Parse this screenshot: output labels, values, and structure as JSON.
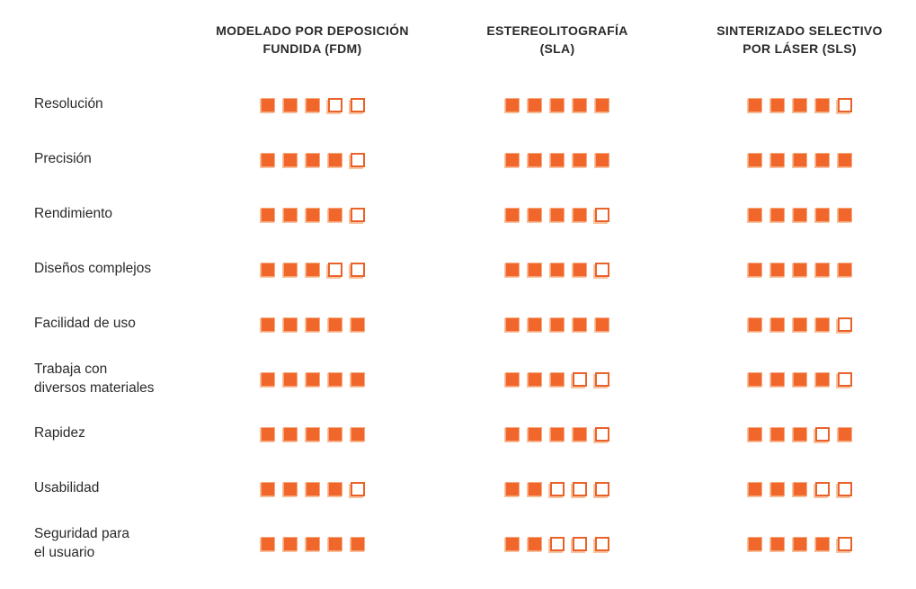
{
  "colors": {
    "square_filled": "#F1662B",
    "square_filled_edge": "#F6A97D",
    "square_empty_border": "#E9622A",
    "square_shadow": "#F9C3A0",
    "text": "#2b2a29",
    "background": "#ffffff"
  },
  "columns": [
    {
      "id": "fdm",
      "label": "MODELADO POR DEPOSICIÓN\nFUNDIDA (FDM)"
    },
    {
      "id": "sla",
      "label": "ESTEREOLITOGRAFÍA\n(SLA)"
    },
    {
      "id": "sls",
      "label": "SINTERIZADO SELECTIVO\nPOR LÁSER (SLS)"
    }
  ],
  "max_squares": 5,
  "rows": [
    {
      "label": "Resolución",
      "ratings": {
        "fdm": [
          1,
          1,
          1,
          0,
          0
        ],
        "sla": [
          1,
          1,
          1,
          1,
          1
        ],
        "sls": [
          1,
          1,
          1,
          1,
          0
        ]
      }
    },
    {
      "label": "Precisión",
      "ratings": {
        "fdm": [
          1,
          1,
          1,
          1,
          0
        ],
        "sla": [
          1,
          1,
          1,
          1,
          1
        ],
        "sls": [
          1,
          1,
          1,
          1,
          1
        ]
      }
    },
    {
      "label": "Rendimiento",
      "ratings": {
        "fdm": [
          1,
          1,
          1,
          1,
          0
        ],
        "sla": [
          1,
          1,
          1,
          1,
          0
        ],
        "sls": [
          1,
          1,
          1,
          1,
          1
        ]
      }
    },
    {
      "label": "Diseños complejos",
      "ratings": {
        "fdm": [
          1,
          1,
          1,
          0,
          0
        ],
        "sla": [
          1,
          1,
          1,
          1,
          0
        ],
        "sls": [
          1,
          1,
          1,
          1,
          1
        ]
      }
    },
    {
      "label": "Facilidad de uso",
      "ratings": {
        "fdm": [
          1,
          1,
          1,
          1,
          1
        ],
        "sla": [
          1,
          1,
          1,
          1,
          1
        ],
        "sls": [
          1,
          1,
          1,
          1,
          0
        ]
      }
    },
    {
      "label": "Trabaja con\ndiversos materiales",
      "ratings": {
        "fdm": [
          1,
          1,
          1,
          1,
          1
        ],
        "sla": [
          1,
          1,
          1,
          0,
          0
        ],
        "sls": [
          1,
          1,
          1,
          1,
          0
        ]
      }
    },
    {
      "label": "Rapidez",
      "ratings": {
        "fdm": [
          1,
          1,
          1,
          1,
          1
        ],
        "sla": [
          1,
          1,
          1,
          1,
          0
        ],
        "sls": [
          1,
          1,
          1,
          0,
          1
        ]
      }
    },
    {
      "label": "Usabilidad",
      "ratings": {
        "fdm": [
          1,
          1,
          1,
          1,
          0
        ],
        "sla": [
          1,
          1,
          0,
          0,
          0
        ],
        "sls": [
          1,
          1,
          1,
          0,
          0
        ]
      }
    },
    {
      "label": "Seguridad para\nel usuario",
      "ratings": {
        "fdm": [
          1,
          1,
          1,
          1,
          1
        ],
        "sla": [
          1,
          1,
          0,
          0,
          0
        ],
        "sls": [
          1,
          1,
          1,
          1,
          0
        ]
      }
    }
  ],
  "chart_data": {
    "type": "table",
    "title": "",
    "categories": [
      "Resolución",
      "Precisión",
      "Rendimiento",
      "Diseños complejos",
      "Facilidad de uso",
      "Trabaja con diversos materiales",
      "Rapidez",
      "Usabilidad",
      "Seguridad para el usuario"
    ],
    "series": [
      {
        "name": "MODELADO POR DEPOSICIÓN FUNDIDA (FDM)",
        "values": [
          3,
          4,
          4,
          3,
          5,
          5,
          5,
          4,
          5
        ]
      },
      {
        "name": "ESTEREOLITOGRAFÍA (SLA)",
        "values": [
          5,
          5,
          4,
          4,
          5,
          3,
          4,
          2,
          2
        ]
      },
      {
        "name": "SINTERIZADO SELECTIVO POR LÁSER (SLS)",
        "values": [
          4,
          5,
          5,
          5,
          4,
          4,
          4,
          3,
          4
        ]
      }
    ],
    "scale_max": 5,
    "note": "Ratings shown as filled orange squares out of 5; Rapidez/SLS shows pattern filled-filled-filled-empty-filled"
  }
}
